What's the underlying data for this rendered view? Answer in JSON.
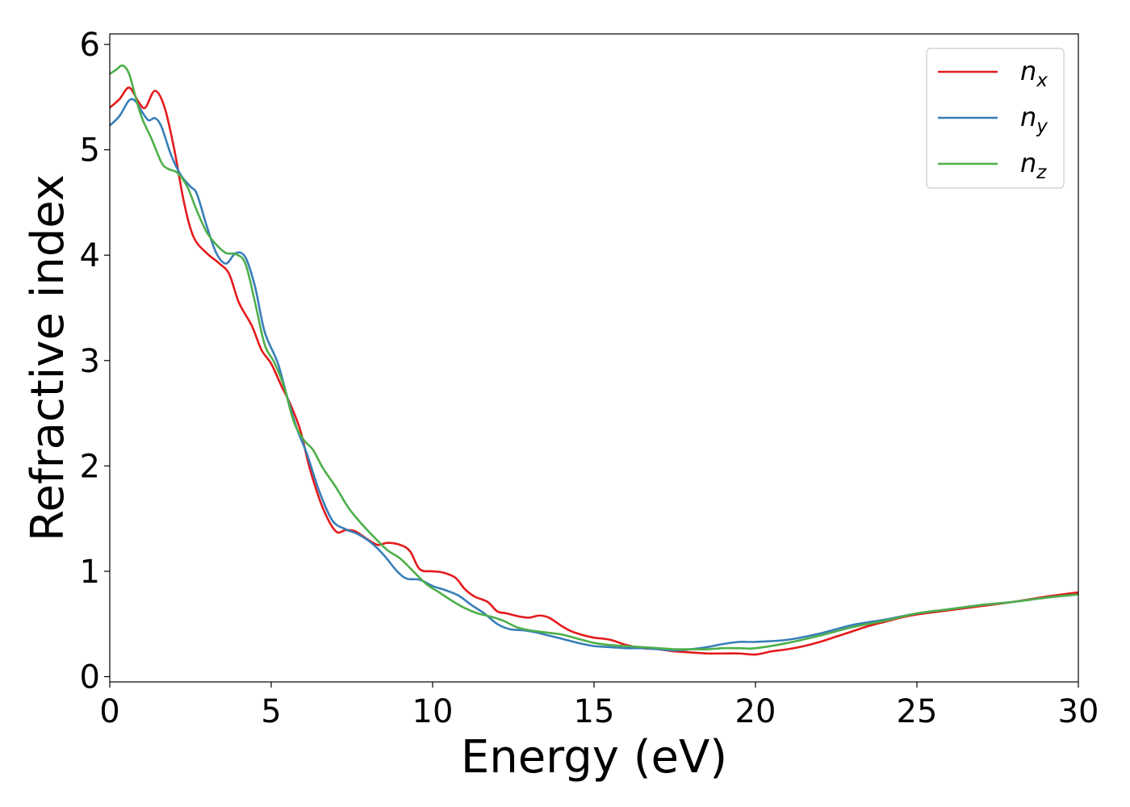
{
  "chart_data": {
    "type": "line",
    "title": "",
    "xlabel": "Energy (eV)",
    "ylabel": "Refractive index",
    "xlim": [
      0,
      30
    ],
    "ylim": [
      -0.05,
      6.1
    ],
    "xticks": [
      0,
      5,
      10,
      15,
      20,
      25,
      30
    ],
    "xtick_labels": [
      "0",
      "5",
      "10",
      "15",
      "20",
      "25",
      "30"
    ],
    "yticks": [
      0,
      1,
      2,
      3,
      4,
      5,
      6
    ],
    "ytick_labels": [
      "0",
      "1",
      "2",
      "3",
      "4",
      "5",
      "6"
    ],
    "grid": false,
    "legend_position": "top-right",
    "series": [
      {
        "name": "n_x",
        "label_base": "n",
        "label_sub": "x",
        "color": "#e41a1c",
        "x": [
          0,
          0.3,
          0.6,
          0.9,
          1.1,
          1.4,
          1.7,
          2.0,
          2.3,
          2.6,
          3.0,
          3.4,
          3.7,
          4.0,
          4.4,
          4.7,
          5.0,
          5.3,
          5.6,
          5.9,
          6.2,
          6.6,
          7.0,
          7.3,
          7.6,
          8.0,
          8.3,
          8.6,
          9.0,
          9.3,
          9.6,
          10.0,
          10.3,
          10.7,
          11.0,
          11.3,
          11.7,
          12.0,
          12.3,
          12.7,
          13.0,
          13.3,
          13.6,
          14.0,
          14.3,
          14.7,
          15.0,
          15.5,
          16.0,
          16.5,
          17.0,
          17.5,
          18.0,
          18.5,
          19.0,
          19.5,
          20.0,
          20.5,
          21.0,
          21.5,
          22.0,
          22.5,
          23.0,
          23.5,
          24.0,
          24.5,
          25.0,
          26.0,
          27.0,
          28.0,
          29.0,
          30.0
        ],
        "values": [
          5.4,
          5.48,
          5.59,
          5.45,
          5.4,
          5.56,
          5.4,
          5.0,
          4.5,
          4.17,
          4.02,
          3.92,
          3.82,
          3.55,
          3.33,
          3.1,
          2.97,
          2.77,
          2.58,
          2.34,
          1.97,
          1.6,
          1.38,
          1.39,
          1.38,
          1.3,
          1.25,
          1.27,
          1.25,
          1.19,
          1.02,
          1.0,
          0.99,
          0.94,
          0.83,
          0.76,
          0.71,
          0.62,
          0.6,
          0.57,
          0.56,
          0.58,
          0.56,
          0.48,
          0.43,
          0.39,
          0.37,
          0.35,
          0.3,
          0.27,
          0.26,
          0.24,
          0.23,
          0.22,
          0.22,
          0.22,
          0.21,
          0.24,
          0.26,
          0.29,
          0.33,
          0.38,
          0.43,
          0.48,
          0.52,
          0.56,
          0.59,
          0.63,
          0.67,
          0.71,
          0.76,
          0.8
        ]
      },
      {
        "name": "n_y",
        "label_base": "n",
        "label_sub": "y",
        "color": "#377eb8",
        "x": [
          0,
          0.3,
          0.6,
          0.8,
          1.0,
          1.2,
          1.4,
          1.6,
          1.9,
          2.2,
          2.5,
          2.7,
          3.0,
          3.3,
          3.6,
          3.9,
          4.2,
          4.5,
          4.8,
          5.2,
          5.5,
          5.8,
          6.1,
          6.5,
          6.9,
          7.3,
          7.7,
          8.1,
          8.5,
          8.9,
          9.2,
          9.6,
          10.0,
          10.4,
          10.8,
          11.2,
          11.6,
          12.0,
          12.4,
          12.8,
          13.2,
          13.6,
          14.0,
          14.5,
          15.0,
          15.5,
          16.0,
          16.5,
          17.0,
          17.5,
          18.0,
          18.5,
          19.0,
          19.5,
          20.0,
          21.0,
          22.0,
          23.0,
          24.0,
          25.0,
          26.0,
          27.0,
          28.0,
          29.0,
          30.0
        ],
        "values": [
          5.23,
          5.32,
          5.47,
          5.46,
          5.36,
          5.28,
          5.3,
          5.22,
          4.95,
          4.76,
          4.65,
          4.58,
          4.28,
          4.02,
          3.92,
          4.02,
          3.98,
          3.7,
          3.27,
          2.98,
          2.65,
          2.35,
          2.12,
          1.75,
          1.48,
          1.4,
          1.35,
          1.27,
          1.15,
          1.0,
          0.93,
          0.92,
          0.86,
          0.82,
          0.77,
          0.68,
          0.6,
          0.5,
          0.45,
          0.44,
          0.42,
          0.39,
          0.36,
          0.32,
          0.29,
          0.28,
          0.27,
          0.27,
          0.26,
          0.25,
          0.26,
          0.28,
          0.31,
          0.33,
          0.33,
          0.35,
          0.41,
          0.49,
          0.54,
          0.6,
          0.64,
          0.68,
          0.71,
          0.75,
          0.78
        ]
      },
      {
        "name": "n_z",
        "label_base": "n",
        "label_sub": "z",
        "color": "#4daf4a",
        "x": [
          0,
          0.2,
          0.4,
          0.6,
          0.8,
          1.0,
          1.3,
          1.6,
          1.8,
          2.1,
          2.4,
          2.7,
          3.0,
          3.3,
          3.6,
          3.9,
          4.2,
          4.5,
          4.8,
          5.1,
          5.4,
          5.7,
          6.0,
          6.3,
          6.6,
          7.0,
          7.4,
          7.8,
          8.2,
          8.6,
          9.0,
          9.4,
          9.8,
          10.2,
          10.6,
          11.0,
          11.4,
          11.8,
          12.2,
          12.6,
          13.0,
          13.5,
          14.0,
          14.5,
          15.0,
          15.5,
          16.0,
          16.5,
          17.0,
          17.5,
          18.0,
          18.5,
          19.0,
          19.5,
          20.0,
          21.0,
          22.0,
          23.0,
          24.0,
          25.0,
          26.0,
          27.0,
          28.0,
          29.0,
          30.0
        ],
        "values": [
          5.72,
          5.76,
          5.8,
          5.72,
          5.5,
          5.3,
          5.1,
          4.88,
          4.82,
          4.78,
          4.65,
          4.42,
          4.22,
          4.1,
          4.02,
          4.01,
          3.92,
          3.55,
          3.15,
          2.98,
          2.75,
          2.42,
          2.25,
          2.15,
          1.98,
          1.8,
          1.6,
          1.45,
          1.32,
          1.2,
          1.12,
          1.0,
          0.88,
          0.8,
          0.72,
          0.65,
          0.6,
          0.57,
          0.53,
          0.47,
          0.44,
          0.42,
          0.4,
          0.36,
          0.32,
          0.3,
          0.29,
          0.28,
          0.27,
          0.26,
          0.26,
          0.26,
          0.27,
          0.27,
          0.27,
          0.32,
          0.39,
          0.47,
          0.53,
          0.6,
          0.64,
          0.68,
          0.71,
          0.75,
          0.78
        ]
      }
    ]
  }
}
